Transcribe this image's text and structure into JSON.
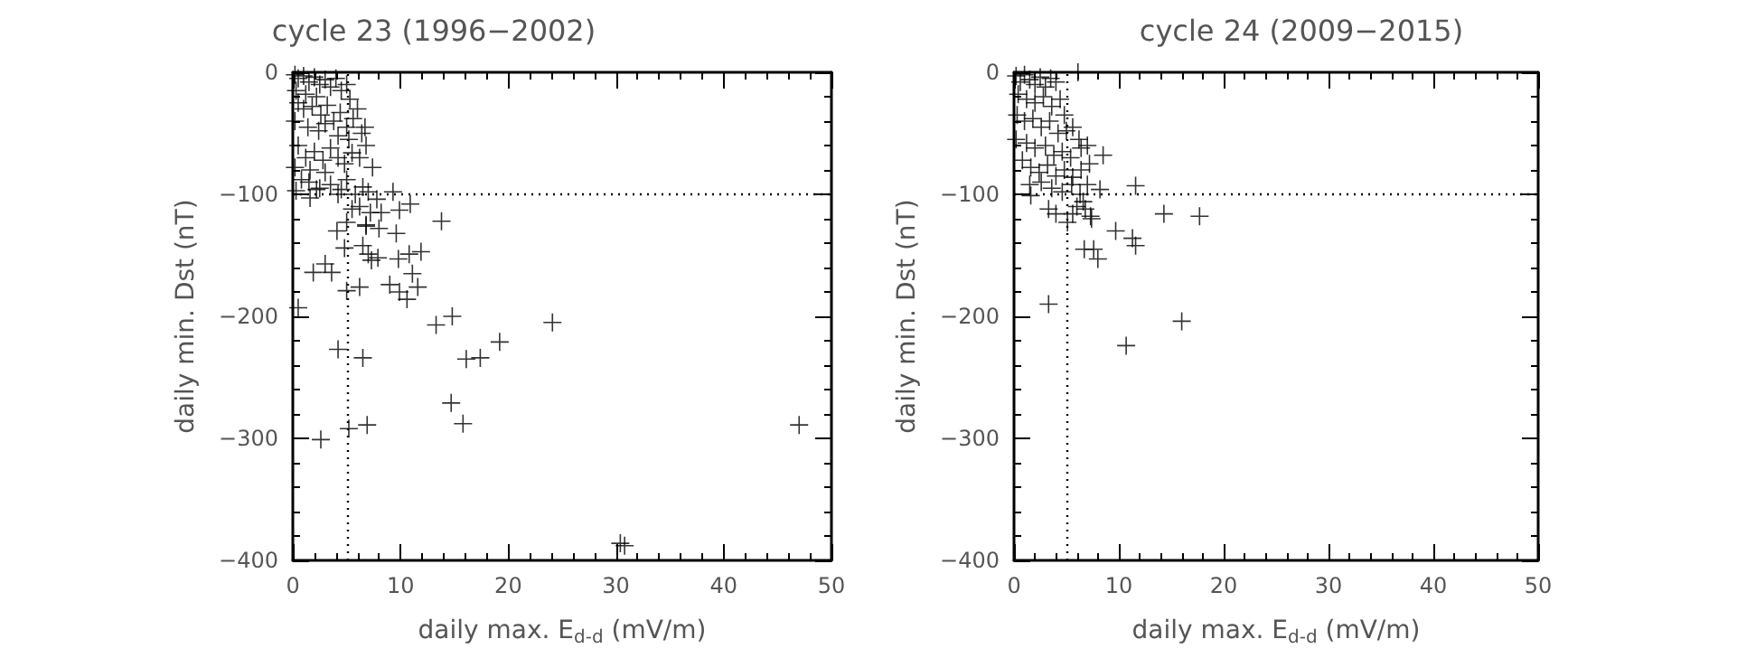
{
  "chart_data": [
    {
      "type": "scatter",
      "title": "cycle 23 (1996−2002)",
      "xlabel": "daily max. E$_{d-d}$ (mV/m)",
      "ylabel": "daily min. Dst (nT)",
      "xlim": [
        0,
        50
      ],
      "xticks": [
        0,
        10,
        20,
        30,
        40,
        50
      ],
      "ylim": [
        -400,
        0
      ],
      "yticks": [
        -400,
        -300,
        -200,
        -100,
        0
      ],
      "grid": false,
      "marker": "cross",
      "ref_lines": [
        {
          "axis": "y",
          "value": -100,
          "line_style": "dotted",
          "color": "#000000"
        },
        {
          "axis": "x",
          "value": 5,
          "line_style": "dotted",
          "color": "#000000"
        }
      ],
      "series": [
        {
          "color": "#000000",
          "x": [
            0.2,
            0.5,
            1,
            1.5,
            2,
            2.5,
            3,
            3.5,
            4,
            4.5,
            0.3,
            1.2,
            2.2,
            5,
            5.3,
            0.5,
            1,
            1.8,
            2.6,
            3.2,
            3.8,
            4.4,
            5,
            5.6,
            6,
            6.4,
            0.2,
            1.4,
            2.4,
            3,
            4.2,
            5.2,
            6.7,
            0.5,
            1.2,
            2,
            2.8,
            3.5,
            4.2,
            4.8,
            5.5,
            6.2,
            6.8,
            7.4,
            0.2,
            1.6,
            3,
            0.8,
            1.5,
            2.5,
            3.5,
            4.5,
            5,
            5.8,
            6.5,
            7,
            7.8,
            4.2,
            0.3,
            6.2,
            5.5,
            7.2,
            8,
            6.8,
            0.5,
            4.2,
            6.5,
            5.2,
            6.9,
            2.6,
            13.3,
            14.8,
            19.2,
            24.1,
            16.1,
            17.4,
            14.7,
            15.8,
            30.4,
            30.8,
            47,
            13.8,
            9.3,
            9.9,
            10.9,
            9.6,
            11.9,
            10.8,
            9.8,
            11.1,
            9,
            11.6,
            10.6,
            9.9,
            7.3,
            7.9,
            7,
            6.5,
            4.8,
            3,
            1.9,
            3.6,
            6.2,
            5,
            4.1,
            5,
            6.8,
            1.6,
            2.2,
            8.2
          ],
          "values": [
            -2,
            -5,
            -3,
            -8,
            -4,
            -10,
            -6,
            -12,
            -5,
            -15,
            -15,
            -18,
            -20,
            -10,
            -22,
            -25,
            -30,
            -28,
            -35,
            -27,
            -40,
            -33,
            -45,
            -38,
            -30,
            -50,
            -40,
            -45,
            -48,
            -42,
            -52,
            -55,
            -45,
            -60,
            -70,
            -65,
            -72,
            -62,
            -70,
            -75,
            -66,
            -70,
            -60,
            -78,
            -78,
            -80,
            -82,
            -88,
            -90,
            -95,
            -92,
            -96,
            -88,
            -100,
            -94,
            -98,
            -104,
            -100,
            -97,
            -110,
            -112,
            -115,
            -128,
            -125,
            -193,
            -227,
            -234,
            -292,
            -289,
            -301,
            -207,
            -200,
            -221,
            -205,
            -235,
            -234,
            -271,
            -288,
            -386,
            -388,
            -289,
            -122,
            -98,
            -113,
            -108,
            -132,
            -147,
            -149,
            -153,
            -165,
            -174,
            -176,
            -186,
            -180,
            -154,
            -152,
            -149,
            -142,
            -144,
            -157,
            -164,
            -164,
            -176,
            -179,
            -130,
            -123,
            -126,
            -103,
            -96,
            -115
          ]
        }
      ]
    },
    {
      "type": "scatter",
      "title": "cycle 24 (2009−2015)",
      "xlabel": "daily max. E$_{d-d}$ (mV/m)",
      "ylabel": "daily min. Dst (nT)",
      "xlim": [
        0,
        50
      ],
      "xticks": [
        0,
        10,
        20,
        30,
        40,
        50
      ],
      "ylim": [
        -400,
        0
      ],
      "yticks": [
        -400,
        -300,
        -200,
        -100,
        0
      ],
      "grid": false,
      "marker": "cross",
      "ref_lines": [
        {
          "axis": "y",
          "value": -100,
          "line_style": "dotted",
          "color": "#000000"
        },
        {
          "axis": "x",
          "value": 5,
          "line_style": "dotted",
          "color": "#000000"
        }
      ],
      "series": [
        {
          "color": "#000000",
          "x": [
            0.2,
            0.6,
            1,
            1.5,
            2,
            2.5,
            3,
            3.5,
            4,
            0.4,
            1.2,
            2,
            2.8,
            3.6,
            4.4,
            4.8,
            0.3,
            1,
            1.8,
            2.6,
            3.4,
            4.2,
            5,
            5.6,
            6.2,
            0.2,
            1.2,
            2,
            3,
            3.8,
            4.6,
            5.4,
            6.4,
            7,
            0.8,
            1.6,
            2.4,
            3.2,
            4,
            4.8,
            5.6,
            6.4,
            7.2,
            1.5,
            2.6,
            3.6,
            4.6,
            5.5,
            6.3,
            7,
            6,
            6.8,
            7.4,
            6.1,
            1.6,
            3.3,
            4,
            3.3,
            5.1,
            5.6,
            6.6,
            6.7,
            7.6,
            8,
            7.3,
            8.2,
            8.5,
            9.7,
            11.3,
            11.6,
            11.6,
            14.3,
            17.7,
            16,
            10.7
          ],
          "values": [
            -3,
            -8,
            -2,
            -6,
            -10,
            -4,
            -12,
            -5,
            -8,
            -18,
            -22,
            -25,
            -20,
            -28,
            -22,
            -35,
            -35,
            -40,
            -38,
            -45,
            -40,
            -50,
            -48,
            -45,
            -55,
            -55,
            -58,
            -62,
            -60,
            -68,
            -65,
            -70,
            -62,
            -60,
            -72,
            -78,
            -82,
            -76,
            -85,
            -80,
            -86,
            -80,
            -75,
            -92,
            -90,
            -95,
            -98,
            -92,
            -100,
            -92,
            -110,
            -112,
            -120,
            0,
            -101,
            -112,
            -116,
            -190,
            -123,
            -116,
            -106,
            -145,
            -145,
            -153,
            -118,
            -96,
            -68,
            -130,
            -136,
            -142,
            -93,
            -116,
            -118,
            -204,
            -224
          ]
        }
      ]
    }
  ]
}
